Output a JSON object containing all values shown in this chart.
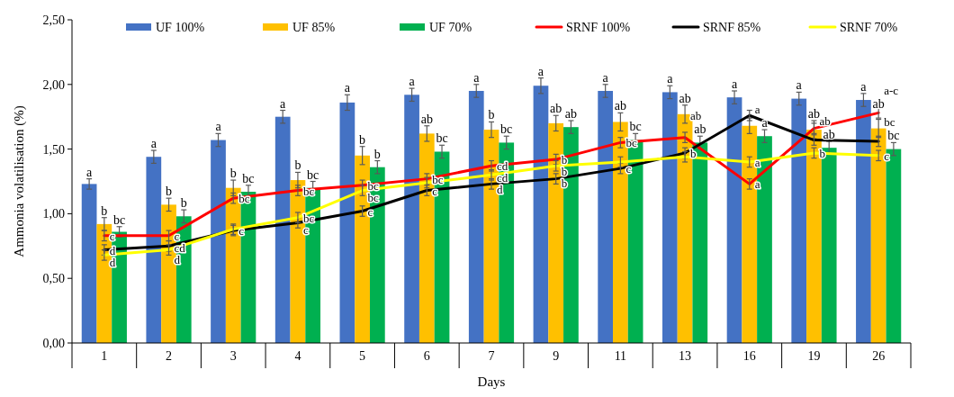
{
  "chart_data": {
    "type": "bar",
    "xlabel": "Days",
    "ylabel": "Ammonia volatilisation (%)",
    "categories": [
      "1",
      "2",
      "3",
      "4",
      "5",
      "6",
      "7",
      "9",
      "11",
      "13",
      "16",
      "19",
      "26"
    ],
    "ylim": [
      0,
      2.5
    ],
    "yticks": [
      {
        "value": 0,
        "label": "0,00"
      },
      {
        "value": 0.5,
        "label": "0,50"
      },
      {
        "value": 1,
        "label": "1,00"
      },
      {
        "value": 1.5,
        "label": "1,50"
      },
      {
        "value": 2,
        "label": "2,00"
      },
      {
        "value": 2.5,
        "label": "2,50"
      }
    ],
    "legend": "top",
    "grid": false,
    "series": [
      {
        "name": "UF 100%",
        "color": "#4472c4",
        "values": [
          1.23,
          1.44,
          1.57,
          1.75,
          1.86,
          1.92,
          1.95,
          1.99,
          1.95,
          1.94,
          1.9,
          1.89,
          1.88
        ],
        "errors": [
          0.04,
          0.05,
          0.05,
          0.05,
          0.06,
          0.05,
          0.05,
          0.06,
          0.05,
          0.05,
          0.05,
          0.05,
          0.05
        ],
        "value_labels": [
          "a",
          "a",
          "a",
          "a",
          "a",
          "a",
          "a",
          "a",
          "a",
          "a",
          "a",
          "a",
          "a"
        ]
      },
      {
        "name": "UF 85%",
        "color": "#ffc000",
        "values": [
          0.92,
          1.07,
          1.2,
          1.26,
          1.45,
          1.62,
          1.65,
          1.7,
          1.71,
          1.77,
          1.68,
          1.65,
          1.66
        ],
        "errors": [
          0.05,
          0.05,
          0.06,
          0.06,
          0.07,
          0.06,
          0.06,
          0.06,
          0.07,
          0.07,
          0.06,
          0.07,
          0.07
        ],
        "value_labels": [
          "b",
          "b",
          "b",
          "b",
          "b",
          "ab",
          "b",
          "ab",
          "ab",
          "ab",
          null,
          "ab",
          "ab"
        ]
      },
      {
        "name": "UF 70%",
        "color": "#00b050",
        "values": [
          0.86,
          0.98,
          1.17,
          1.2,
          1.36,
          1.48,
          1.55,
          1.67,
          1.57,
          1.55,
          1.6,
          1.51,
          1.5
        ],
        "errors": [
          0.04,
          0.05,
          0.05,
          0.05,
          0.05,
          0.05,
          0.05,
          0.05,
          0.05,
          0.05,
          0.05,
          0.05,
          0.05
        ],
        "value_labels": [
          "bc",
          "b",
          "bc",
          "bc",
          "b",
          "bc",
          "bc",
          "ab",
          "bc",
          "ab",
          "a",
          "ab",
          "bc"
        ]
      },
      {
        "name": "SRNF 100%",
        "type": "line",
        "color": "#ff0000",
        "values": [
          0.83,
          0.83,
          1.12,
          1.18,
          1.22,
          1.27,
          1.37,
          1.42,
          1.55,
          1.59,
          1.23,
          1.66,
          1.78
        ],
        "errors": [
          0.04,
          0.04,
          0.04,
          0.04,
          0.04,
          0.04,
          0.04,
          0.04,
          0.04,
          0.04,
          0.04,
          0.04,
          0.04
        ],
        "value_labels": [
          "c",
          "c",
          "bc",
          "bc",
          "bc",
          "bc",
          "cd",
          "b",
          "bc",
          "ab",
          "a",
          "ab",
          "a-c"
        ]
      },
      {
        "name": "SRNF 85%",
        "type": "line",
        "color": "#000000",
        "values": [
          0.72,
          0.75,
          0.87,
          0.93,
          1.02,
          1.18,
          1.23,
          1.27,
          1.35,
          1.47,
          1.76,
          1.57,
          1.56
        ],
        "errors": [
          0.04,
          0.04,
          0.04,
          0.04,
          0.04,
          0.04,
          0.04,
          0.04,
          0.04,
          0.04,
          0.04,
          0.04,
          0.04
        ],
        "value_labels": [
          "d",
          "cd",
          "c",
          "c",
          "c",
          "c",
          "d",
          "b",
          "c",
          "b",
          "a",
          null,
          "bc"
        ]
      },
      {
        "name": "SRNF 70%",
        "type": "line",
        "color": "#ffff00",
        "values": [
          0.68,
          0.72,
          0.88,
          0.97,
          1.18,
          1.24,
          1.3,
          1.37,
          1.4,
          1.44,
          1.4,
          1.47,
          1.45
        ],
        "errors": [
          0.04,
          0.04,
          0.04,
          0.04,
          0.04,
          0.04,
          0.04,
          0.04,
          0.04,
          0.04,
          0.04,
          0.04,
          0.04
        ],
        "value_labels": [
          "d",
          "d",
          null,
          "bc",
          "bc",
          null,
          "cd",
          "b",
          null,
          null,
          "a",
          "b",
          "c"
        ]
      }
    ]
  }
}
